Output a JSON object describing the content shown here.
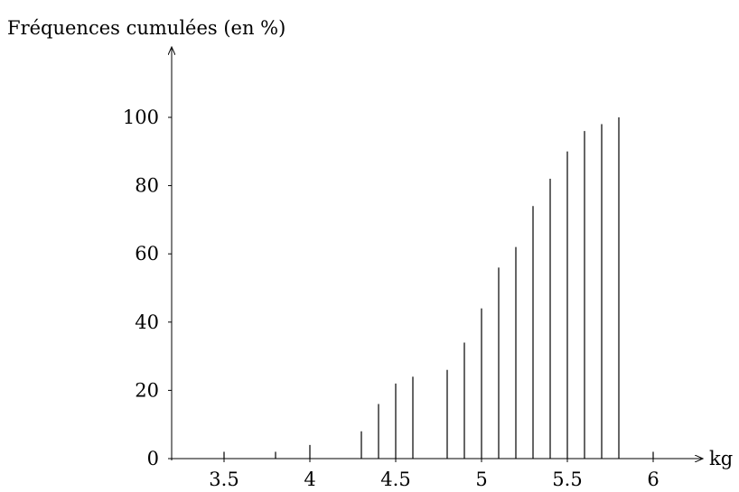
{
  "chart_data": {
    "type": "bar",
    "title": "",
    "ylabel": "Fréquences cumulées (en %)",
    "xlabel": "kg",
    "xlim": [
      3.25,
      6.25
    ],
    "ylim": [
      0,
      120
    ],
    "x_ticks": [
      3.5,
      4,
      4.5,
      5,
      5.5,
      6
    ],
    "x_tick_labels": [
      "3.5",
      "4",
      "4.5",
      "5",
      "5.5",
      "6"
    ],
    "y_ticks": [
      0,
      20,
      40,
      60,
      80,
      100
    ],
    "y_tick_labels": [
      "0",
      "20",
      "40",
      "60",
      "80",
      "100"
    ],
    "grid": false,
    "x": [
      3.5,
      3.8,
      4.0,
      4.3,
      4.4,
      4.5,
      4.6,
      4.8,
      4.9,
      5.0,
      5.1,
      5.2,
      5.3,
      5.4,
      5.5,
      5.6,
      5.7,
      5.8,
      6.0
    ],
    "values": [
      2,
      2,
      4,
      8,
      16,
      22,
      24,
      26,
      34,
      44,
      56,
      62,
      74,
      82,
      90,
      96,
      98,
      100,
      2
    ]
  }
}
